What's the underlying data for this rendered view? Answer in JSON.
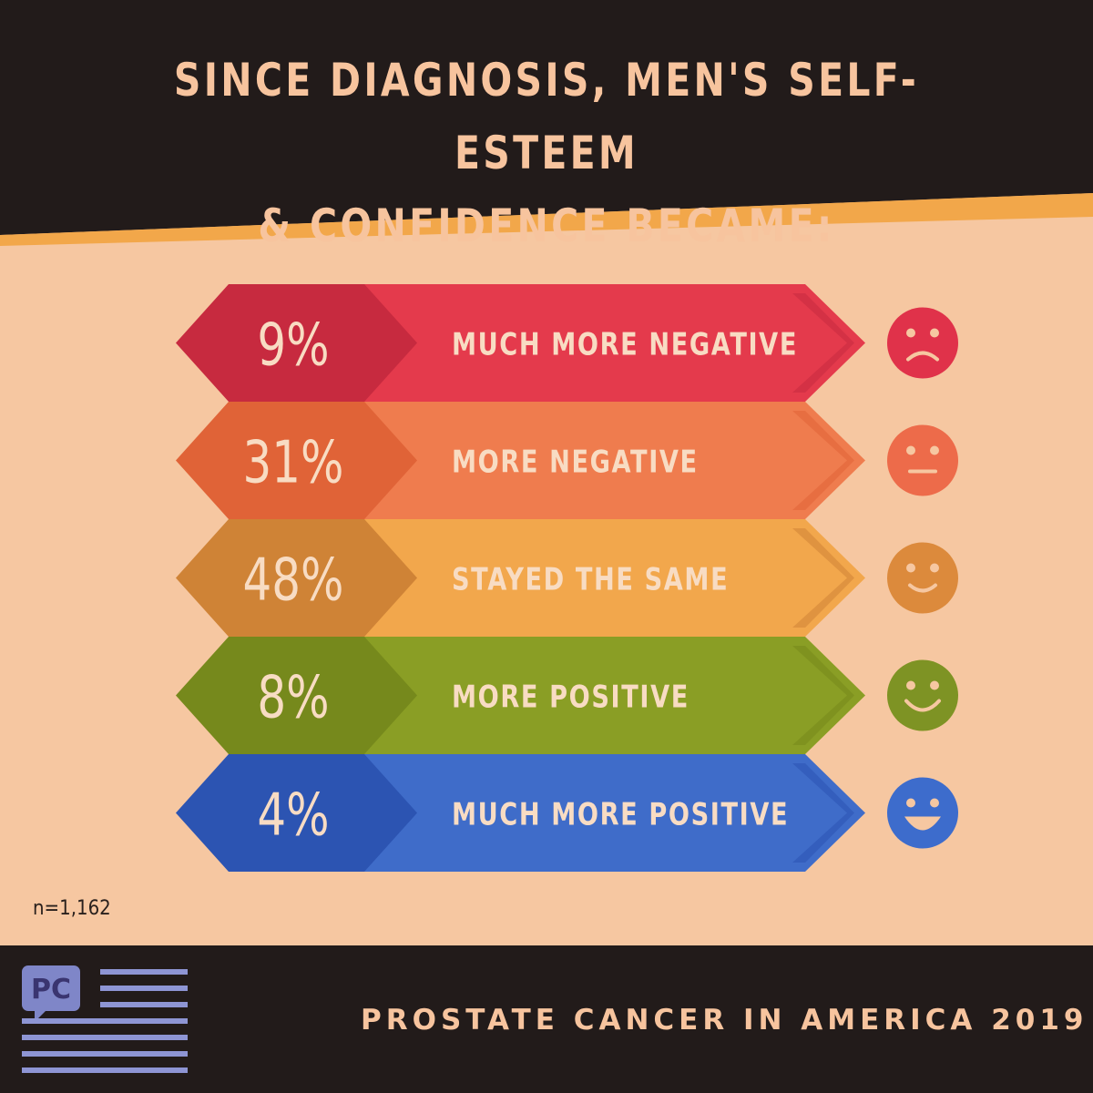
{
  "header": {
    "title_line1": "SINCE DIAGNOSIS, MEN'S SELF-ESTEEM",
    "title_line2": "& CONFIDENCE BECAME:"
  },
  "chart_data": {
    "type": "bar",
    "title": "SINCE DIAGNOSIS, MEN'S SELF-ESTEEM & CONFIDENCE BECAME:",
    "categories": [
      "MUCH MORE NEGATIVE",
      "MORE NEGATIVE",
      "STAYED THE SAME",
      "MORE POSITIVE",
      "MUCH MORE POSITIVE"
    ],
    "values": [
      9,
      31,
      48,
      8,
      4
    ],
    "value_labels": [
      "9%",
      "31%",
      "48%",
      "8%",
      "4%"
    ],
    "unit": "%",
    "colors": [
      "#e43a4c",
      "#ef7c4e",
      "#f2a74c",
      "#8a9e25",
      "#3f6cc9"
    ],
    "left_colors": [
      "#c72a3f",
      "#e06337",
      "#cf8336",
      "#76891c",
      "#2c54b2"
    ],
    "icons": [
      "frown-face-icon",
      "neutral-face-icon",
      "slight-smile-face-icon",
      "smile-face-icon",
      "grin-face-icon"
    ],
    "icon_colors": [
      "#e0324a",
      "#ed6b4a",
      "#dc8a3c",
      "#7e9324",
      "#3d6ccc"
    ],
    "sample_size": "n=1,162"
  },
  "footer": {
    "title": "PROSTATE CANCER IN AMERICA 2019",
    "logo_text": "PC",
    "logo_icon": "pc-speech-bubble-flag-icon"
  },
  "colors": {
    "background": "#f6c7a1",
    "dark": "#221b1a",
    "accent_orange": "#f2a340",
    "title_text": "#f7c49e",
    "logo_purple": "#7f86c8"
  }
}
